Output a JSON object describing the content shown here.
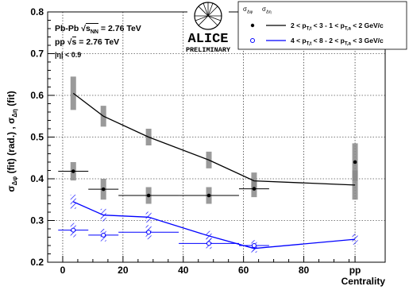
{
  "chart_data": {
    "type": "scatter",
    "xlabel": "Centrality",
    "ylabel": "σΔφ (fit) (rad.) , σΔη (fit)",
    "xlim": [
      -5,
      107
    ],
    "ylim": [
      0.2,
      0.8
    ],
    "x_ticks": [
      0,
      20,
      40,
      60,
      80
    ],
    "x_tick_labels": [
      "0",
      "20",
      "40",
      "60",
      "80"
    ],
    "pp_label": "pp",
    "pp_x": 97,
    "y_ticks": [
      0.2,
      0.3,
      0.4,
      0.5,
      0.6,
      0.7,
      0.8
    ],
    "y_tick_labels": [
      "0.2",
      "0.3",
      "0.4",
      "0.5",
      "0.6",
      "0.7",
      "0.8"
    ],
    "grid": true,
    "annotations": {
      "collision": "Pb-Pb",
      "sqrt_s_nn": "s",
      "sqrt_s_nn_sub": "NN",
      "pbpb_energy": "= 2.76 TeV",
      "pp_system": "pp",
      "pp_sqrt": "s",
      "pp_energy": "= 2.76 TeV",
      "eta_cut": "|η| < 0.9"
    },
    "logo": {
      "name": "ALICE",
      "sub": "PRELIMINARY"
    },
    "legend": {
      "position": "top-right",
      "header_phi": "σΔφ",
      "header_eta": "σΔη",
      "entries": [
        {
          "label": "2 < pT,t < 3 - 1 < pT,a < 2  GeV/c",
          "color": "#000000"
        },
        {
          "label": "4 < pT,t < 8 - 2 < pT,a < 3  GeV/c",
          "color": "#0000ff"
        }
      ]
    },
    "series": [
      {
        "name": "σΔη (fit), 2 < pT,t < 3 - 1 < pT,a < 2 GeV/c",
        "color": "#000000",
        "marker": "line",
        "x": [
          3.5,
          13.5,
          28.5,
          48.5,
          63.5,
          97
        ],
        "y": [
          0.605,
          0.55,
          0.5,
          0.445,
          0.395,
          0.385
        ],
        "sys": [
          0.04,
          0.025,
          0.02,
          0.02,
          0.02,
          0.035
        ]
      },
      {
        "name": "σΔφ (fit), 2 < pT,t < 3 - 1 < pT,a < 2 GeV/c",
        "color": "#000000",
        "marker": "dot",
        "x": [
          3.5,
          13.5,
          28.5,
          48.5,
          63.5,
          97
        ],
        "y": [
          0.418,
          0.375,
          0.36,
          0.36,
          0.376,
          0.44
        ],
        "xerr": [
          5,
          5,
          10,
          10,
          5,
          0
        ],
        "sys": [
          0.022,
          0.025,
          0.02,
          0.02,
          0.02,
          0.045
        ]
      },
      {
        "name": "σΔη (fit), 4 < pT,t < 8 - 2 < pT,a < 3 GeV/c",
        "color": "#0000ff",
        "marker": "line",
        "x": [
          3.5,
          13.5,
          28.5,
          48.5,
          63.5,
          97
        ],
        "y": [
          0.345,
          0.313,
          0.308,
          0.263,
          0.233,
          0.255
        ],
        "sys": [
          0.017,
          0.015,
          0.013,
          0.012,
          0.01,
          0.013
        ]
      },
      {
        "name": "σΔφ (fit), 4 < pT,t < 8 - 2 < pT,a < 3 GeV/c",
        "color": "#0000ff",
        "marker": "open-circle",
        "x": [
          3.5,
          13.5,
          28.5,
          48.5,
          63.5
        ],
        "y": [
          0.277,
          0.265,
          0.272,
          0.245,
          0.24
        ],
        "xerr": [
          5,
          5,
          10,
          10,
          5
        ],
        "sys": [
          0.017,
          0.015,
          0.017,
          0.013,
          0.013
        ]
      }
    ]
  }
}
